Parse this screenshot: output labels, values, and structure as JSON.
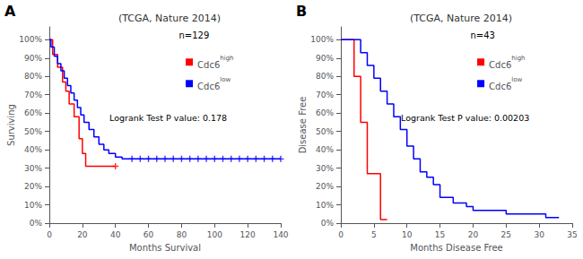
{
  "chart_data": [
    {
      "type": "step",
      "panel_label": "A",
      "title": "(TCGA, Nature 2014)",
      "xlabel": "Months Survival",
      "ylabel": "Surviving",
      "annotations": [
        "n=129",
        "Logrank Test P value: 0.178"
      ],
      "xlim": [
        0,
        140
      ],
      "xticks": [
        0,
        20,
        40,
        60,
        80,
        100,
        120,
        140
      ],
      "ylim": [
        0,
        107
      ],
      "yticks": [
        {
          "value": 0,
          "label": "0%"
        },
        {
          "value": 10,
          "label": "10%"
        },
        {
          "value": 20,
          "label": "20%"
        },
        {
          "value": 30,
          "label": "30%"
        },
        {
          "value": 40,
          "label": "40%"
        },
        {
          "value": 50,
          "label": "50%"
        },
        {
          "value": 60,
          "label": "60%"
        },
        {
          "value": 70,
          "label": "70%"
        },
        {
          "value": 80,
          "label": "80%"
        },
        {
          "value": 90,
          "label": "90%"
        },
        {
          "value": 100,
          "label": "100%"
        }
      ],
      "grid": false,
      "legend": "upper right",
      "series": [
        {
          "name": "Cdc6high",
          "color": "#FF0000",
          "marker": "plus",
          "x": [
            0,
            2,
            5,
            8,
            10,
            12,
            15,
            18,
            20,
            22,
            25,
            28,
            30,
            35,
            40
          ],
          "values": [
            100,
            92,
            85,
            77,
            72,
            65,
            58,
            46,
            38,
            31,
            31,
            31,
            31,
            31,
            31
          ],
          "censors": [
            [
              40,
              31
            ]
          ]
        },
        {
          "name": "Cdc6low",
          "color": "#0000FF",
          "marker": "plus",
          "x": [
            0,
            1,
            3,
            5,
            7,
            9,
            11,
            13,
            15,
            17,
            19,
            21,
            24,
            27,
            30,
            33,
            36,
            40,
            44,
            46,
            50,
            55,
            60,
            65,
            70,
            75,
            80,
            85,
            90,
            95,
            100,
            105,
            110,
            115,
            120,
            125,
            130,
            135,
            140
          ],
          "values": [
            100,
            96,
            91,
            87,
            83,
            79,
            75,
            71,
            67,
            63,
            59,
            55,
            51,
            47,
            43,
            40,
            38,
            36,
            35,
            35,
            35,
            35,
            35,
            35,
            35,
            35,
            35,
            35,
            35,
            35,
            35,
            35,
            35,
            35,
            35,
            35,
            35,
            35,
            35
          ],
          "censors": [
            [
              50,
              35
            ],
            [
              55,
              35
            ],
            [
              60,
              35
            ],
            [
              65,
              35
            ],
            [
              70,
              35
            ],
            [
              75,
              35
            ],
            [
              80,
              35
            ],
            [
              85,
              35
            ],
            [
              90,
              35
            ],
            [
              95,
              35
            ],
            [
              100,
              35
            ],
            [
              105,
              35
            ],
            [
              110,
              35
            ],
            [
              115,
              35
            ],
            [
              120,
              35
            ],
            [
              125,
              35
            ],
            [
              130,
              35
            ],
            [
              135,
              35
            ],
            [
              140,
              35
            ]
          ]
        }
      ]
    },
    {
      "type": "step",
      "panel_label": "B",
      "title": "(TCGA, Nature 2014)",
      "xlabel": "Months Disease Free",
      "ylabel": "Disease Free",
      "annotations": [
        "n=43",
        "Logrank Test P value: 0.00203"
      ],
      "xlim": [
        0,
        35
      ],
      "xticks": [
        0,
        5,
        10,
        15,
        20,
        25,
        30,
        35
      ],
      "ylim": [
        0,
        107
      ],
      "yticks": [
        {
          "value": 0,
          "label": "0%"
        },
        {
          "value": 10,
          "label": "10%"
        },
        {
          "value": 20,
          "label": "20%"
        },
        {
          "value": 30,
          "label": "30%"
        },
        {
          "value": 40,
          "label": "40%"
        },
        {
          "value": 50,
          "label": "50%"
        },
        {
          "value": 60,
          "label": "60%"
        },
        {
          "value": 70,
          "label": "70%"
        },
        {
          "value": 80,
          "label": "80%"
        },
        {
          "value": 90,
          "label": "90%"
        },
        {
          "value": 100,
          "label": "100%"
        }
      ],
      "grid": false,
      "legend": "upper right",
      "series": [
        {
          "name": "Cdc6high",
          "color": "#FF0000",
          "marker": "plus",
          "x": [
            0,
            2,
            3,
            4,
            5,
            6,
            7
          ],
          "values": [
            100,
            80,
            55,
            27,
            27,
            2,
            2
          ],
          "censors": []
        },
        {
          "name": "Cdc6low",
          "color": "#0000FF",
          "marker": "plus",
          "x": [
            0,
            3,
            4,
            5,
            6,
            7,
            8,
            9,
            10,
            11,
            12,
            13,
            14,
            15,
            17,
            19,
            20,
            21,
            23,
            25,
            27,
            29,
            31,
            33
          ],
          "values": [
            100,
            93,
            86,
            79,
            72,
            65,
            58,
            51,
            42,
            35,
            28,
            25,
            21,
            14,
            11,
            9,
            7,
            7,
            7,
            5,
            5,
            5,
            3,
            3
          ],
          "censors": []
        }
      ]
    }
  ]
}
